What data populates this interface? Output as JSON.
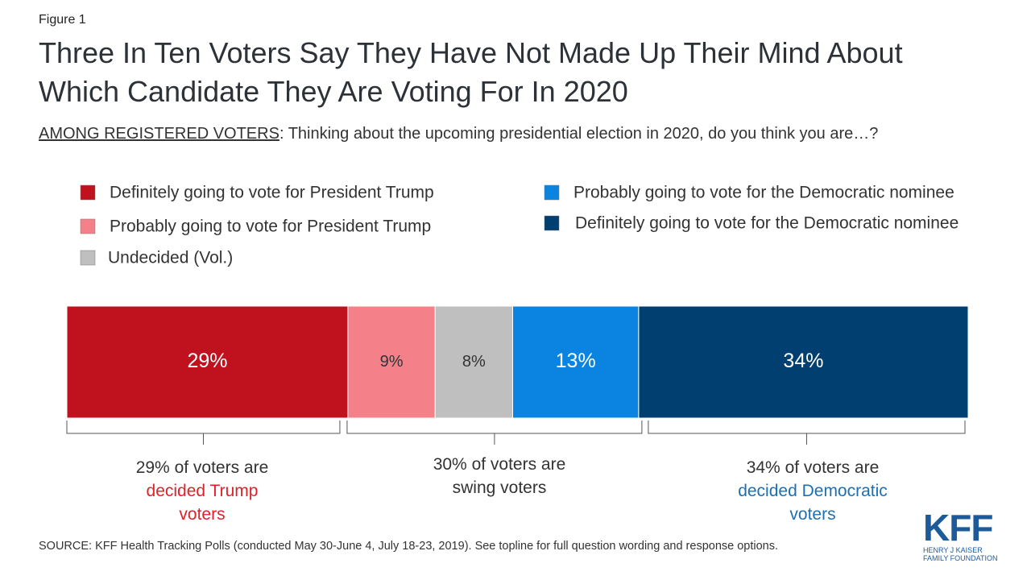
{
  "figure_label": "Figure 1",
  "chart_data": {
    "type": "bar",
    "orientation": "horizontal",
    "stacked": true,
    "title": "Three In Ten Voters Say They Have Not Made Up Their Mind About Which Candidate They Are Voting For In 2020",
    "subtitle_lead": "AMONG REGISTERED VOTERS",
    "subtitle": ": Thinking about the upcoming presidential election in 2020, do you think you are…?",
    "categories": [
      null
    ],
    "series": [
      {
        "name": "Definitely going to vote for President Trump",
        "color": "#c0111f",
        "values": [
          29
        ],
        "value_labels": [
          "29%"
        ]
      },
      {
        "name": "Probably going to vote for President Trump",
        "color": "#f4808a",
        "values": [
          9
        ],
        "value_labels": [
          "9%"
        ]
      },
      {
        "name": "Undecided (Vol.)",
        "color": "#bfbfbf",
        "values": [
          8
        ],
        "value_labels": [
          "8%"
        ]
      },
      {
        "name": "Probably going to vote for the Democratic nominee",
        "color": "#0a84e0",
        "values": [
          13
        ],
        "value_labels": [
          "13%"
        ]
      },
      {
        "name": "Definitely going to vote for the Democratic nominee",
        "color": "#003f6f",
        "values": [
          34
        ],
        "value_labels": [
          "34%"
        ]
      }
    ],
    "annotations": [
      {
        "text": "29% of voters are",
        "highlight": "decided Trump voters"
      },
      {
        "text": "30% of voters are swing voters"
      },
      {
        "text": "34% of voters are",
        "highlight": "decided Democratic voters"
      }
    ]
  },
  "source": "SOURCE: KFF Health Tracking Polls (conducted May 30-June 4, July 18-23, 2019). See topline for full question wording and response options.",
  "logo": {
    "name": "KFF",
    "line1": "HENRY J KAISER",
    "line2": "FAMILY FOUNDATION"
  }
}
